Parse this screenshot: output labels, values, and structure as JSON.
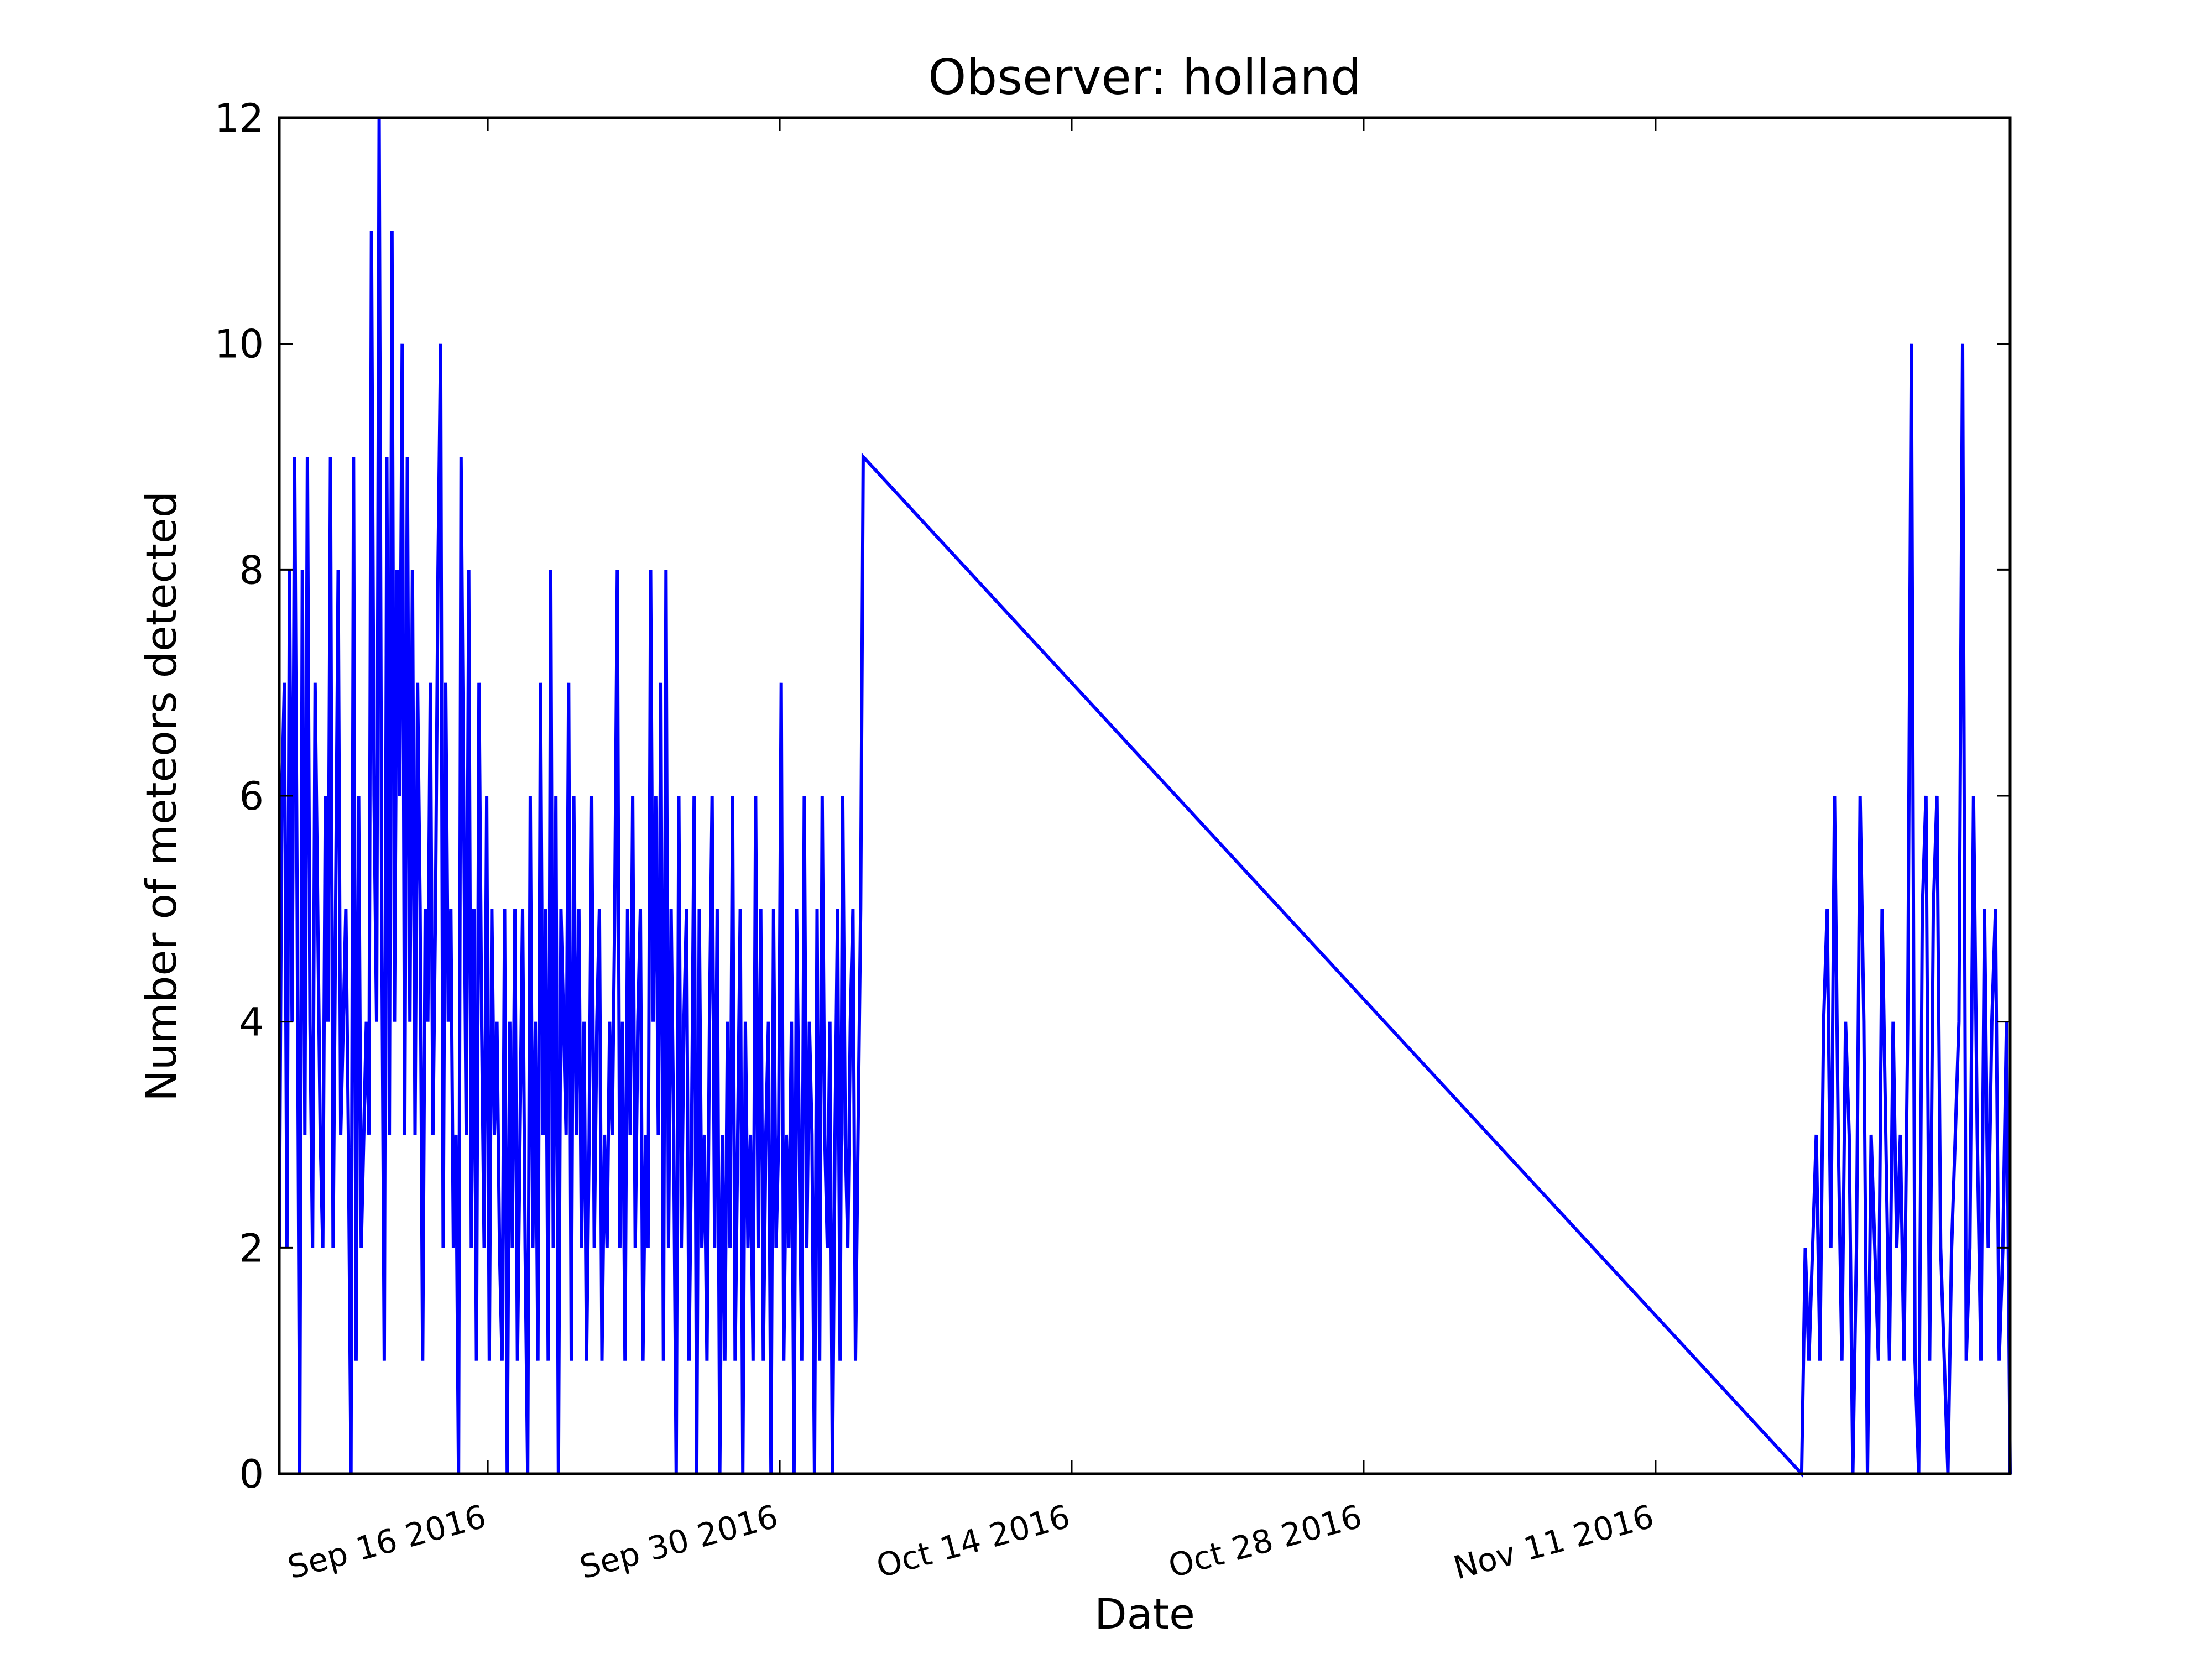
{
  "chart_data": {
    "type": "line",
    "title": "Observer: holland",
    "xlabel": "Date",
    "ylabel": "Number of meteors detected",
    "ylim": [
      0,
      12
    ],
    "yticks": [
      0,
      2,
      4,
      6,
      8,
      10,
      12
    ],
    "ytick_labels": [
      "0",
      "2",
      "4",
      "6",
      "8",
      "10",
      "12"
    ],
    "xlim": [
      "2016-09-06",
      "2016-11-28"
    ],
    "xticks": [
      "2016-09-16",
      "2016-09-30",
      "2016-10-14",
      "2016-10-28",
      "2016-11-11"
    ],
    "xtick_labels": [
      "Sep 16 2016",
      "Sep 30 2016",
      "Oct 14 2016",
      "Oct 28 2016",
      "Nov 11 2016"
    ],
    "grid": false,
    "line_color": "#0000ff",
    "series": [
      {
        "segments": [
          {
            "start": "2016-09-06",
            "end": "2016-10-04",
            "values": [
              2,
              6,
              7,
              2,
              8,
              4,
              9,
              5,
              0,
              8,
              3,
              9,
              4,
              2,
              7,
              5,
              3,
              2,
              6,
              4,
              9,
              2,
              5,
              8,
              3,
              4,
              5,
              3,
              0,
              9,
              1,
              6,
              2,
              3,
              4,
              3,
              11,
              6,
              4,
              12,
              5,
              1,
              9,
              3,
              11,
              4,
              8,
              6,
              10,
              3,
              9,
              4,
              8,
              3,
              7,
              5,
              1,
              5,
              4,
              7,
              3,
              5,
              8,
              10,
              2,
              7,
              4,
              5,
              2,
              3,
              0,
              9,
              6,
              3,
              8,
              2,
              5,
              1,
              7,
              4,
              2,
              6,
              1,
              5,
              3,
              4,
              2,
              1,
              5,
              0,
              4,
              2,
              5,
              1,
              3,
              5,
              2,
              0,
              6,
              2,
              4,
              1,
              7,
              3,
              5,
              1,
              8,
              2,
              6,
              0,
              5,
              4,
              3,
              7,
              1,
              6,
              3,
              5,
              2,
              4,
              1,
              3,
              6,
              2,
              4,
              5,
              1,
              3,
              2,
              4,
              3,
              5,
              8,
              2,
              4,
              1,
              5,
              3,
              6,
              2,
              4,
              5,
              1,
              3,
              2,
              8,
              4,
              6,
              3,
              7,
              1,
              8,
              2,
              5,
              3,
              0,
              6,
              2,
              4,
              5,
              1,
              3,
              6,
              0,
              5,
              2,
              3,
              1,
              4,
              6,
              2,
              5,
              0,
              3,
              1,
              4,
              2,
              6,
              1,
              3,
              5,
              0,
              4,
              2,
              3,
              1,
              6,
              2,
              5,
              1,
              3,
              4,
              0,
              5,
              2,
              3,
              7,
              1,
              3,
              2,
              4,
              0,
              5,
              3,
              1,
              6,
              2,
              4,
              3,
              0,
              5,
              1,
              6,
              3,
              2,
              4,
              0,
              3,
              5,
              1,
              6,
              3,
              2,
              4,
              5,
              1,
              3,
              5,
              9
            ]
          },
          {
            "start": "2016-11-18",
            "end": "2016-11-28",
            "values": [
              0,
              2,
              1,
              2,
              3,
              1,
              4,
              5,
              2,
              6,
              3,
              1,
              4,
              3,
              0,
              2,
              6,
              4,
              0,
              3,
              2,
              1,
              5,
              3,
              1,
              4,
              2,
              3,
              1,
              4,
              10,
              1,
              0,
              5,
              6,
              1,
              5,
              6,
              2,
              1,
              0,
              2,
              3,
              4,
              10,
              1,
              2,
              6,
              3,
              1,
              5,
              2,
              4,
              5,
              1,
              2,
              4,
              0
            ]
          }
        ]
      }
    ]
  }
}
